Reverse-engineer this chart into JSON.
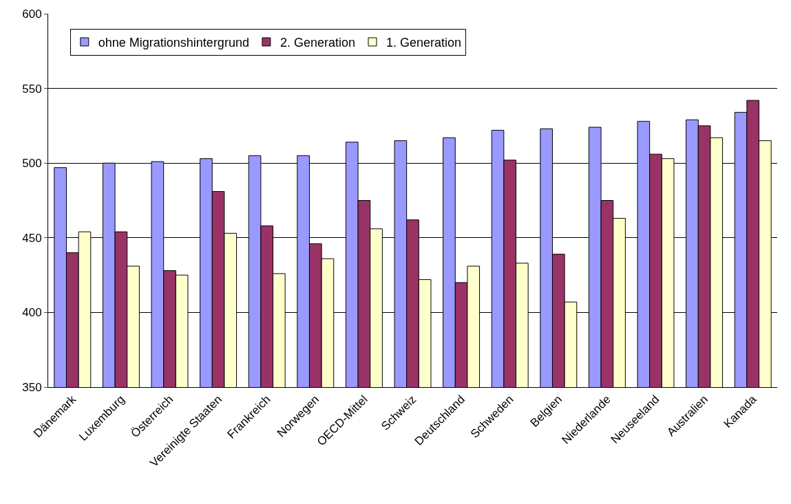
{
  "chart_data": {
    "type": "bar",
    "categories": [
      "Dänemark",
      "Luxemburg",
      "Österreich",
      "Vereinigte Staaten",
      "Frankreich",
      "Norwegen",
      "OECD-Mittel",
      "Schweiz",
      "Deutschland",
      "Schweden",
      "Belgien",
      "Niederlande",
      "Neuseeland",
      "Australien",
      "Kanada"
    ],
    "series": [
      {
        "name": "ohne Migrationshintergrund",
        "color": "#9999ff",
        "values": [
          497,
          500,
          501,
          503,
          505,
          505,
          514,
          515,
          517,
          522,
          523,
          524,
          528,
          529,
          534
        ]
      },
      {
        "name": "2. Generation",
        "color": "#993366",
        "values": [
          440,
          454,
          428,
          481,
          458,
          446,
          475,
          462,
          420,
          502,
          439,
          475,
          506,
          525,
          542
        ]
      },
      {
        "name": "1. Generation",
        "color": "#ffffcc",
        "values": [
          454,
          431,
          425,
          453,
          426,
          436,
          456,
          422,
          431,
          433,
          407,
          463,
          503,
          517,
          515
        ]
      }
    ],
    "ylim": [
      350,
      600
    ],
    "yticks": [
      350,
      400,
      450,
      500,
      550,
      600
    ],
    "grid": "y",
    "legend": "top left"
  }
}
